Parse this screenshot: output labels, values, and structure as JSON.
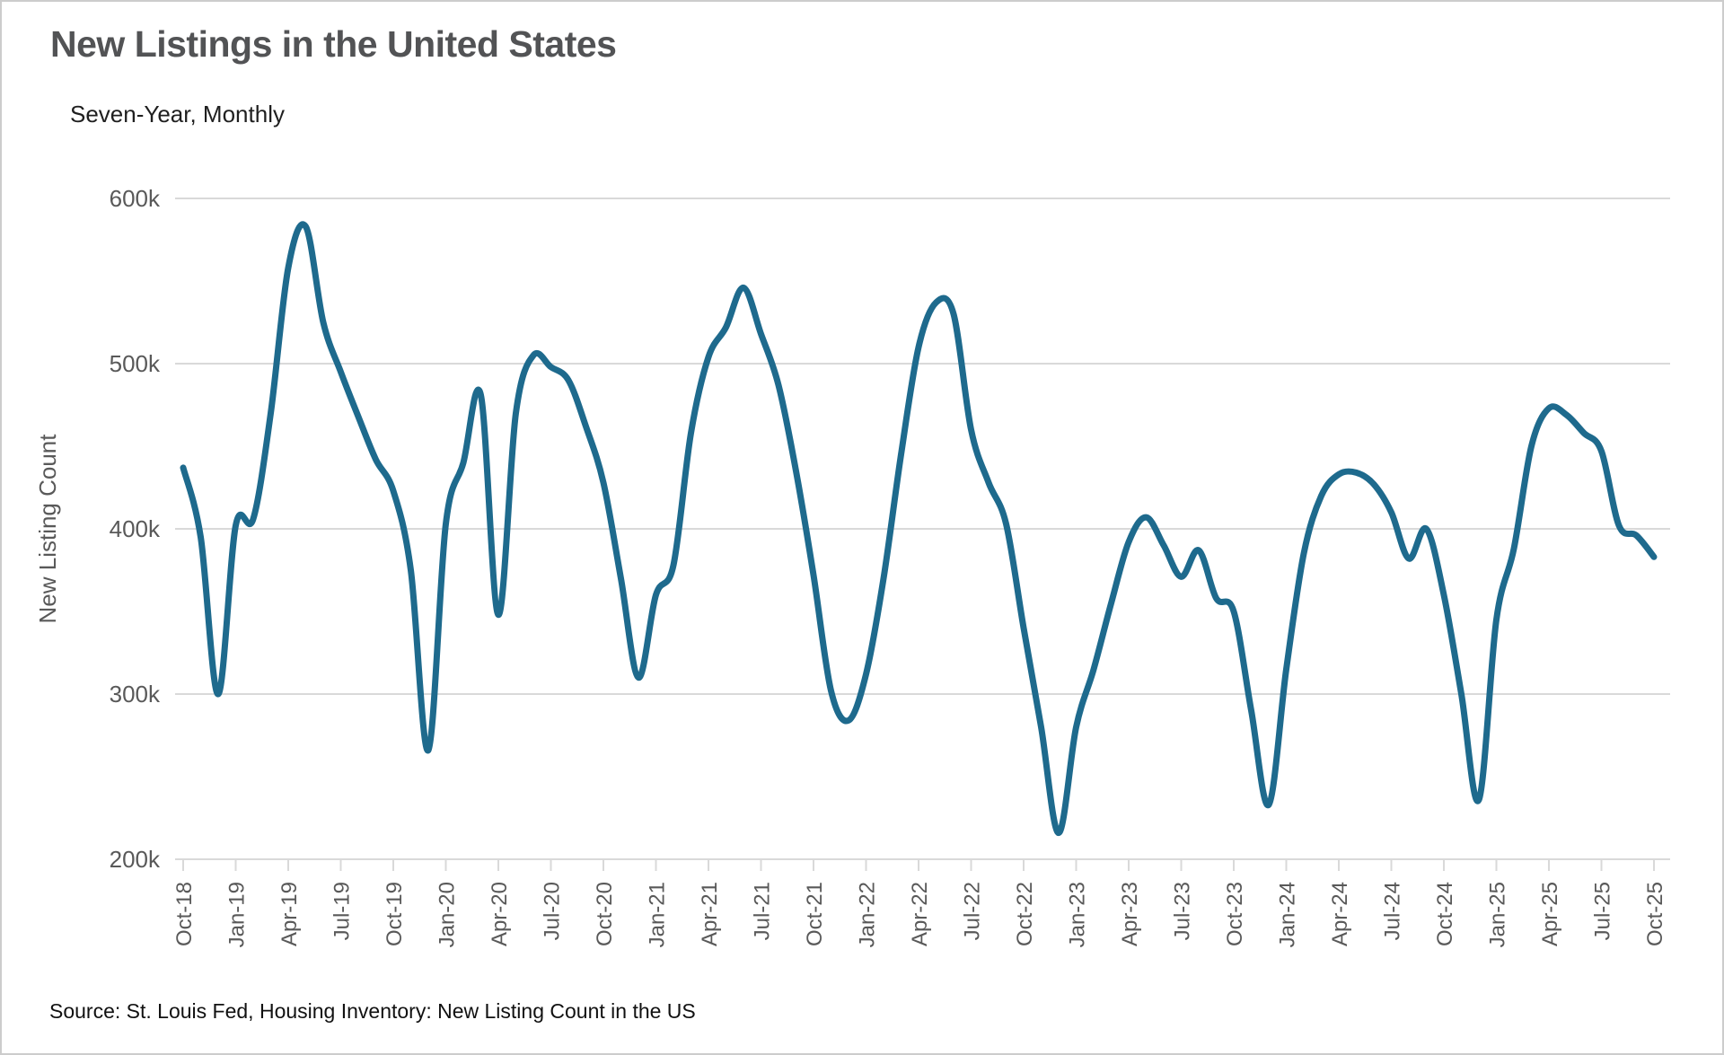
{
  "title": "New Listings in the United States",
  "subtitle": "Seven-Year, Monthly",
  "source": "Source: St. Louis Fed, Housing Inventory: New Listing Count in the US",
  "colors": {
    "line": "#1E6A8D",
    "grid": "#D9D9D9",
    "axis_text": "#595959",
    "title_text": "#525355"
  },
  "chart_data": {
    "type": "line",
    "title": "New Listings in the United States",
    "subtitle": "Seven-Year, Monthly",
    "ylabel": "New Listing Count",
    "xlabel": "",
    "unit": "thousands of new listings",
    "frequency": "monthly",
    "start_month": "Oct-2018",
    "end_month": "Oct-2025",
    "ylim": [
      200,
      600
    ],
    "grid": true,
    "legend": "none",
    "y_tick_labels": [
      "600k",
      "500k",
      "400k",
      "300k",
      "200k"
    ],
    "y_tick_values": [
      600,
      500,
      400,
      300,
      200
    ],
    "x_tick_labels": [
      "Oct-18",
      "Jan-19",
      "Apr-19",
      "Jul-19",
      "Oct-19",
      "Jan-20",
      "Apr-20",
      "Jul-20",
      "Oct-20",
      "Jan-21",
      "Apr-21",
      "Jul-21",
      "Oct-21",
      "Jan-22",
      "Apr-22",
      "Jul-22",
      "Oct-22",
      "Jan-23",
      "Apr-23",
      "Jul-23",
      "Oct-23",
      "Jan-24",
      "Apr-24",
      "Jul-24",
      "Oct-24",
      "Jan-25",
      "Apr-25",
      "Jul-25",
      "Oct-25"
    ],
    "x_tick_every_n_months": 3,
    "values_thousands": [
      437,
      395,
      300,
      402,
      406,
      470,
      558,
      583,
      525,
      495,
      468,
      442,
      423,
      375,
      266,
      403,
      440,
      481,
      348,
      470,
      505,
      498,
      490,
      462,
      428,
      370,
      310,
      360,
      378,
      458,
      504,
      522,
      546,
      518,
      487,
      435,
      372,
      302,
      284,
      312,
      370,
      445,
      510,
      537,
      530,
      460,
      428,
      403,
      340,
      280,
      216,
      280,
      315,
      355,
      392,
      407,
      390,
      371,
      387,
      358,
      350,
      290,
      233,
      315,
      385,
      420,
      433,
      434,
      427,
      410,
      382,
      400,
      360,
      300,
      236,
      345,
      388,
      450,
      473,
      469,
      458,
      447,
      402,
      396,
      383
    ]
  }
}
